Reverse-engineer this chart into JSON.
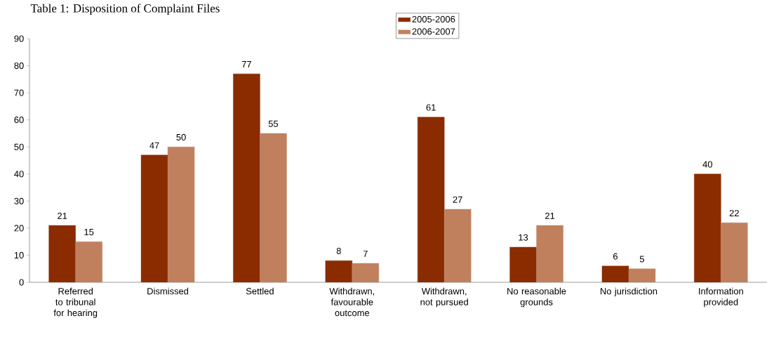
{
  "chart_data": {
    "type": "bar",
    "title": "Table 1: Disposition of Complaint Files",
    "categories": [
      "Referred to tribunal for hearing",
      "Dismissed",
      "Settled",
      "Withdrawn, favourable outcome",
      "Withdrawn, not pursued",
      "No reasonable grounds",
      "No jurisdiction",
      "Information provided"
    ],
    "series": [
      {
        "name": "2005-2006",
        "color": "#8a2c00",
        "values": [
          21,
          47,
          77,
          8,
          61,
          13,
          6,
          40
        ]
      },
      {
        "name": "2006-2007",
        "color": "#c0805e",
        "values": [
          15,
          50,
          55,
          7,
          27,
          21,
          5,
          22
        ]
      }
    ],
    "ylim": [
      0,
      90
    ],
    "yticks": [
      0,
      10,
      20,
      30,
      40,
      50,
      60,
      70,
      80,
      90
    ],
    "data_labels": true,
    "legend": "top",
    "grid": false
  }
}
